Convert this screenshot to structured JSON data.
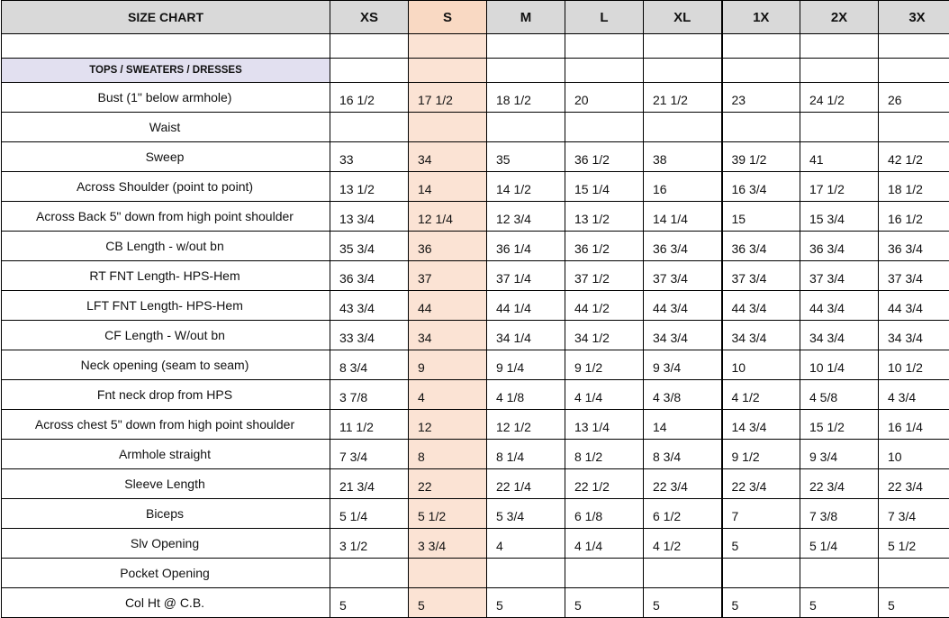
{
  "header": {
    "title": "SIZE CHART",
    "sizes": [
      "XS",
      "S",
      "M",
      "L",
      "XL",
      "1X",
      "2X",
      "3X"
    ]
  },
  "section_label": "TOPS / SWEATERS / DRESSES",
  "rows": [
    {
      "label": "Bust (1\" below armhole)",
      "values": [
        "16 1/2",
        "17 1/2",
        "18 1/2",
        "20",
        "21 1/2",
        "23",
        "24 1/2",
        "26"
      ]
    },
    {
      "label": "Waist",
      "values": [
        "",
        "",
        "",
        "",
        "",
        "",
        "",
        ""
      ]
    },
    {
      "label": "Sweep",
      "values": [
        "33",
        "34",
        "35",
        "36 1/2",
        "38",
        "39 1/2",
        "41",
        "42 1/2"
      ]
    },
    {
      "label": "Across Shoulder (point to point)",
      "values": [
        "13 1/2",
        "14",
        "14 1/2",
        "15 1/4",
        "16",
        "16 3/4",
        "17 1/2",
        "18 1/2"
      ]
    },
    {
      "label": "Across Back 5\" down from high point shoulder",
      "values": [
        "13 3/4",
        "12 1/4",
        "12 3/4",
        "13 1/2",
        "14 1/4",
        "15",
        "15 3/4",
        "16 1/2"
      ]
    },
    {
      "label": "CB Length - w/out bn",
      "values": [
        "35 3/4",
        "36",
        "36 1/4",
        "36 1/2",
        "36 3/4",
        "36 3/4",
        "36 3/4",
        "36 3/4"
      ]
    },
    {
      "label": "RT FNT Length- HPS-Hem",
      "values": [
        "36 3/4",
        "37",
        "37 1/4",
        "37 1/2",
        "37 3/4",
        "37 3/4",
        "37 3/4",
        "37 3/4"
      ]
    },
    {
      "label": "LFT FNT Length- HPS-Hem",
      "values": [
        "43 3/4",
        "44",
        "44 1/4",
        "44 1/2",
        "44 3/4",
        "44 3/4",
        "44 3/4",
        "44 3/4"
      ]
    },
    {
      "label": "CF Length - W/out bn",
      "values": [
        "33 3/4",
        "34",
        "34 1/4",
        "34 1/2",
        "34 3/4",
        "34 3/4",
        "34 3/4",
        "34 3/4"
      ]
    },
    {
      "label": "Neck opening (seam to seam)",
      "values": [
        "8 3/4",
        "9",
        "9 1/4",
        "9 1/2",
        "9 3/4",
        "10",
        "10 1/4",
        "10 1/2"
      ]
    },
    {
      "label": "Fnt neck drop from HPS",
      "values": [
        "3 7/8",
        "4",
        "4 1/8",
        "4 1/4",
        "4 3/8",
        "4 1/2",
        "4 5/8",
        "4 3/4"
      ]
    },
    {
      "label": "Across chest 5\" down from high point shoulder",
      "values": [
        "11 1/2",
        "12",
        "12 1/2",
        "13 1/4",
        "14",
        "14 3/4",
        "15 1/2",
        "16 1/4"
      ]
    },
    {
      "label": "Armhole straight",
      "values": [
        "7 3/4",
        "8",
        "8 1/4",
        "8 1/2",
        "8 3/4",
        "9 1/2",
        "9 3/4",
        "10"
      ]
    },
    {
      "label": "Sleeve Length",
      "values": [
        "21 3/4",
        "22",
        "22 1/4",
        "22 1/2",
        "22 3/4",
        "22 3/4",
        "22 3/4",
        "22 3/4"
      ]
    },
    {
      "label": "Biceps",
      "values": [
        "5 1/4",
        "5 1/2",
        "5  3/4",
        "6  1/8",
        "6 1/2",
        "7",
        "7 3/8",
        "7 3/4"
      ]
    },
    {
      "label": "Slv Opening",
      "values": [
        "3 1/2",
        "3 3/4",
        "4",
        "4 1/4",
        "4 1/2",
        "5",
        "5 1/4",
        "5 1/2"
      ]
    },
    {
      "label": "Pocket Opening",
      "values": [
        "",
        "",
        "",
        "",
        "",
        "",
        "",
        ""
      ]
    },
    {
      "label": "Col Ht @ C.B.",
      "values": [
        "5",
        "5",
        "5",
        "5",
        "5",
        "5",
        "5",
        "5"
      ]
    }
  ]
}
